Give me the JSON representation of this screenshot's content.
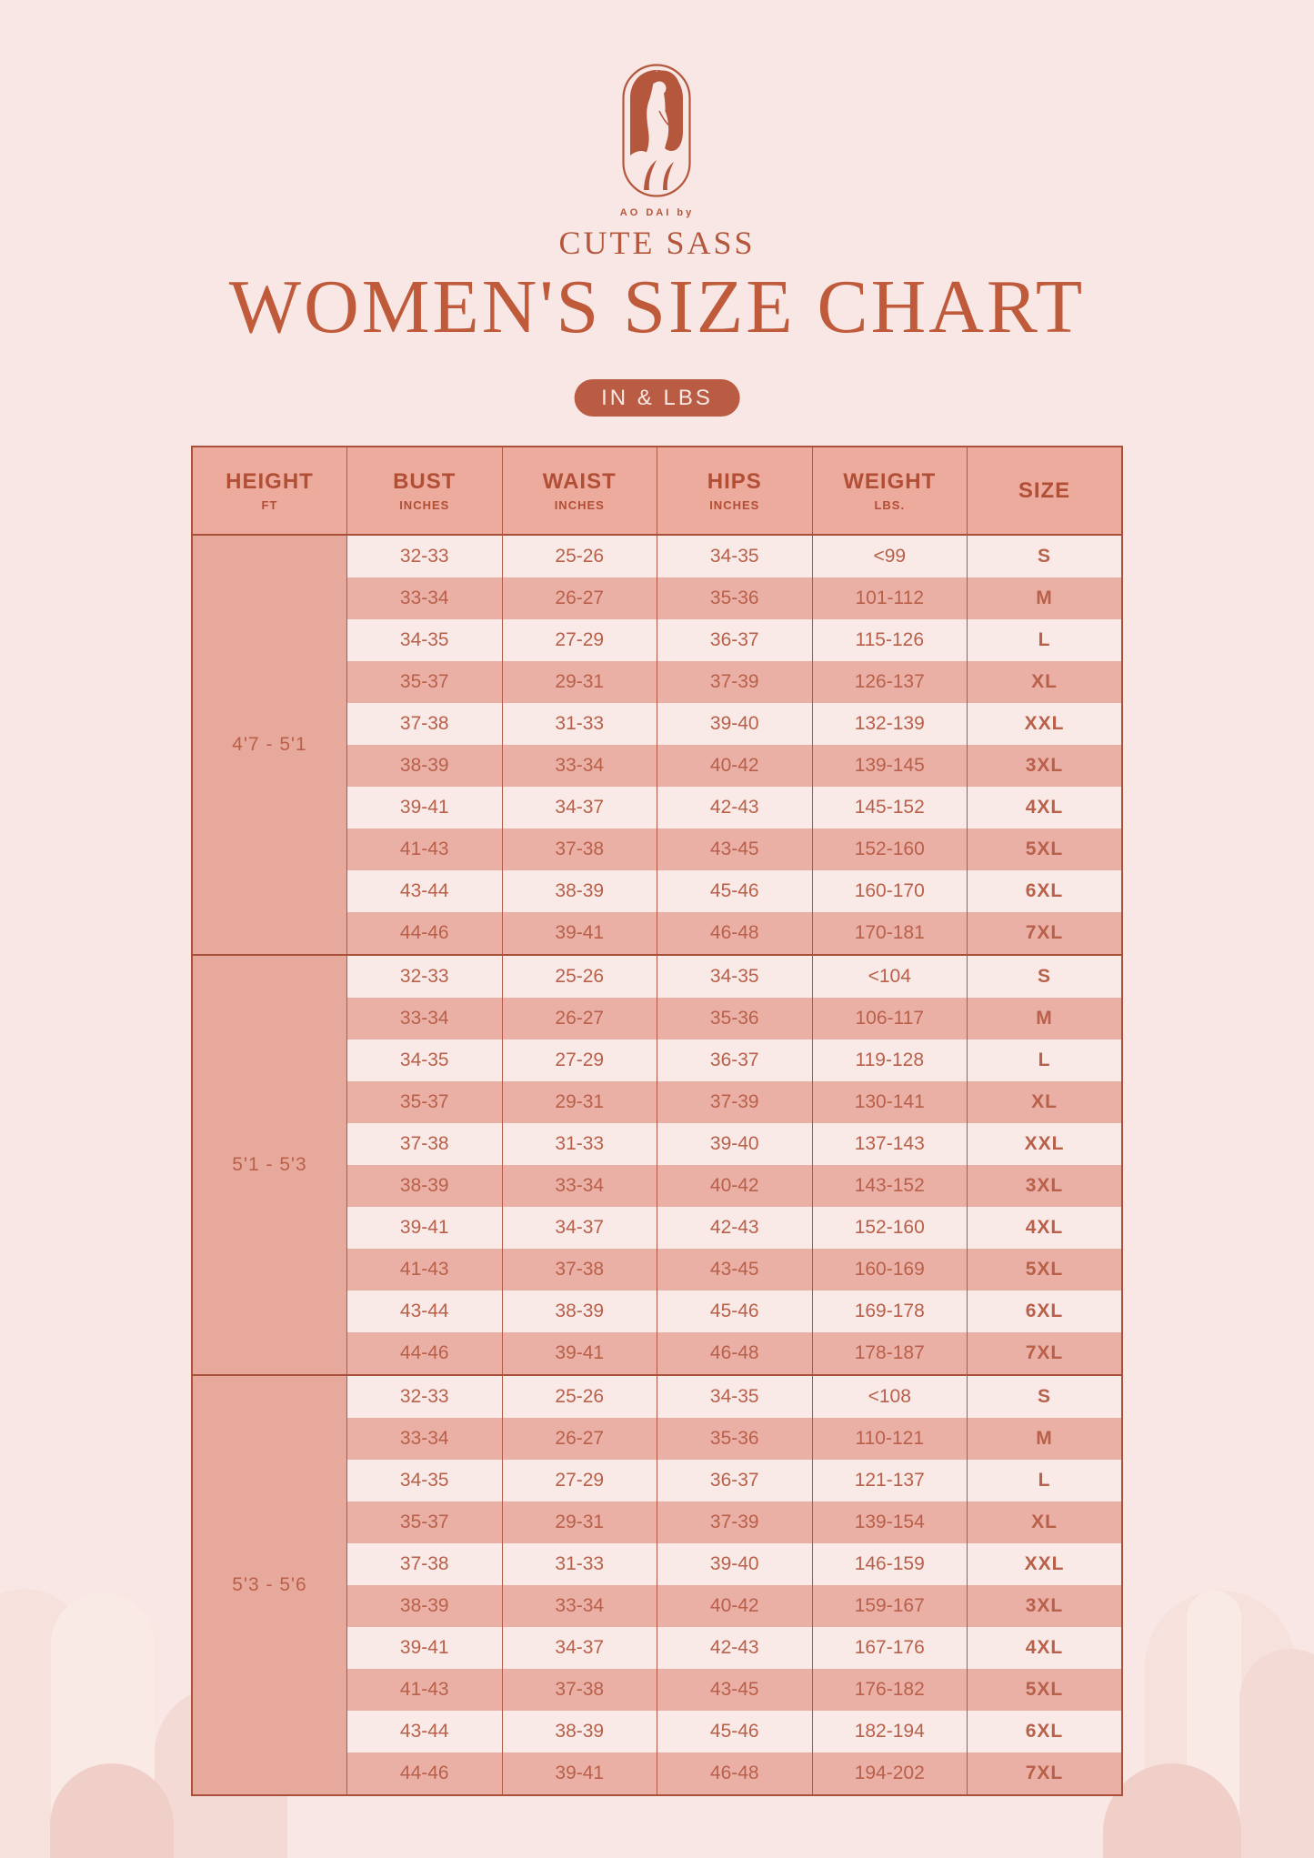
{
  "brand": {
    "tagline": "AO DAI by",
    "name": "CUTE SASS",
    "logo_icon": "ao-dai-woman-icon"
  },
  "title": "WOMEN'S SIZE CHART",
  "units_badge": "IN & LBS",
  "colors": {
    "page_bg": "#f8e7e4",
    "accent_red": "#b4573c",
    "title_red": "#bf5a3b",
    "header_bg": "#edab9e",
    "row_light": "#f9eae7",
    "row_dark": "#eab0a6",
    "height_cell_bg": "#e7a99b",
    "table_border": "#a8503a",
    "badge_bg": "#b95c43",
    "badge_text": "#f9e8e5"
  },
  "table": {
    "columns": [
      {
        "key": "height",
        "label": "HEIGHT",
        "sub": "FT"
      },
      {
        "key": "bust",
        "label": "BUST",
        "sub": "INCHES"
      },
      {
        "key": "waist",
        "label": "WAIST",
        "sub": "INCHES"
      },
      {
        "key": "hips",
        "label": "HIPS",
        "sub": "INCHES"
      },
      {
        "key": "weight",
        "label": "WEIGHT",
        "sub": "LBS."
      },
      {
        "key": "size",
        "label": "SIZE",
        "sub": ""
      }
    ],
    "groups": [
      {
        "height_range": "4'7 - 5'1",
        "rows": [
          [
            "32-33",
            "25-26",
            "34-35",
            "<99",
            "S"
          ],
          [
            "33-34",
            "26-27",
            "35-36",
            "101-112",
            "M"
          ],
          [
            "34-35",
            "27-29",
            "36-37",
            "115-126",
            "L"
          ],
          [
            "35-37",
            "29-31",
            "37-39",
            "126-137",
            "XL"
          ],
          [
            "37-38",
            "31-33",
            "39-40",
            "132-139",
            "XXL"
          ],
          [
            "38-39",
            "33-34",
            "40-42",
            "139-145",
            "3XL"
          ],
          [
            "39-41",
            "34-37",
            "42-43",
            "145-152",
            "4XL"
          ],
          [
            "41-43",
            "37-38",
            "43-45",
            "152-160",
            "5XL"
          ],
          [
            "43-44",
            "38-39",
            "45-46",
            "160-170",
            "6XL"
          ],
          [
            "44-46",
            "39-41",
            "46-48",
            "170-181",
            "7XL"
          ]
        ]
      },
      {
        "height_range": "5'1 - 5'3",
        "rows": [
          [
            "32-33",
            "25-26",
            "34-35",
            "<104",
            "S"
          ],
          [
            "33-34",
            "26-27",
            "35-36",
            "106-117",
            "M"
          ],
          [
            "34-35",
            "27-29",
            "36-37",
            "119-128",
            "L"
          ],
          [
            "35-37",
            "29-31",
            "37-39",
            "130-141",
            "XL"
          ],
          [
            "37-38",
            "31-33",
            "39-40",
            "137-143",
            "XXL"
          ],
          [
            "38-39",
            "33-34",
            "40-42",
            "143-152",
            "3XL"
          ],
          [
            "39-41",
            "34-37",
            "42-43",
            "152-160",
            "4XL"
          ],
          [
            "41-43",
            "37-38",
            "43-45",
            "160-169",
            "5XL"
          ],
          [
            "43-44",
            "38-39",
            "45-46",
            "169-178",
            "6XL"
          ],
          [
            "44-46",
            "39-41",
            "46-48",
            "178-187",
            "7XL"
          ]
        ]
      },
      {
        "height_range": "5'3 - 5'6",
        "rows": [
          [
            "32-33",
            "25-26",
            "34-35",
            "<108",
            "S"
          ],
          [
            "33-34",
            "26-27",
            "35-36",
            "110-121",
            "M"
          ],
          [
            "34-35",
            "27-29",
            "36-37",
            "121-137",
            "L"
          ],
          [
            "35-37",
            "29-31",
            "37-39",
            "139-154",
            "XL"
          ],
          [
            "37-38",
            "31-33",
            "39-40",
            "146-159",
            "XXL"
          ],
          [
            "38-39",
            "33-34",
            "40-42",
            "159-167",
            "3XL"
          ],
          [
            "39-41",
            "34-37",
            "42-43",
            "167-176",
            "4XL"
          ],
          [
            "41-43",
            "37-38",
            "43-45",
            "176-182",
            "5XL"
          ],
          [
            "43-44",
            "38-39",
            "45-46",
            "182-194",
            "6XL"
          ],
          [
            "44-46",
            "39-41",
            "46-48",
            "194-202",
            "7XL"
          ]
        ]
      }
    ]
  }
}
